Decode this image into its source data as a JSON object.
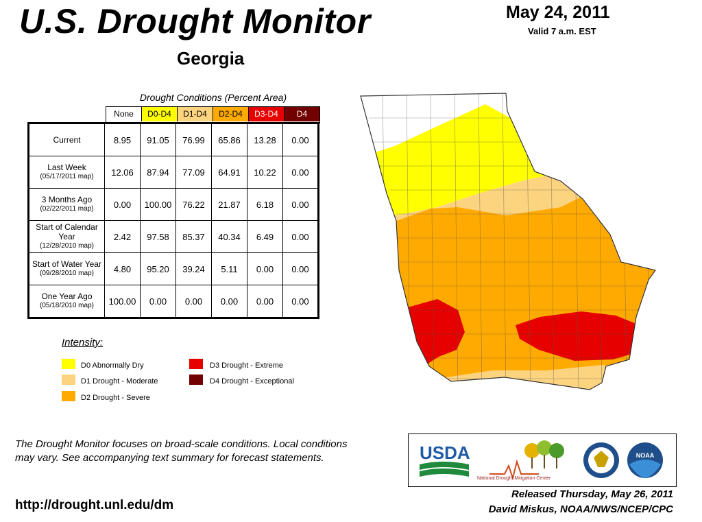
{
  "header": {
    "title": "U.S. Drought Monitor",
    "date": "May 24, 2011",
    "valid": "Valid 7 a.m. EST",
    "state": "Georgia"
  },
  "conditions": {
    "caption": "Drought Conditions (Percent Area)",
    "columns": [
      "None",
      "D0-D4",
      "D1-D4",
      "D2-D4",
      "D3-D4",
      "D4"
    ],
    "column_colors": [
      "#ffffff",
      "#ffff00",
      "#fcd37f",
      "#ffaa00",
      "#e60000",
      "#730000"
    ],
    "rows": [
      {
        "label": "Current",
        "sub": "",
        "values": [
          "8.95",
          "91.05",
          "76.99",
          "65.86",
          "13.28",
          "0.00"
        ]
      },
      {
        "label": "Last Week",
        "sub": "(05/17/2011 map)",
        "values": [
          "12.06",
          "87.94",
          "77.09",
          "64.91",
          "10.22",
          "0.00"
        ]
      },
      {
        "label": "3 Months Ago",
        "sub": "(02/22/2011 map)",
        "values": [
          "0.00",
          "100.00",
          "76.22",
          "21.87",
          "6.18",
          "0.00"
        ]
      },
      {
        "label": "Start of Calendar Year",
        "sub": "(12/28/2010 map)",
        "values": [
          "2.42",
          "97.58",
          "85.37",
          "40.34",
          "6.49",
          "0.00"
        ]
      },
      {
        "label": "Start of Water Year",
        "sub": "(09/28/2010 map)",
        "values": [
          "4.80",
          "95.20",
          "39.24",
          "5.11",
          "0.00",
          "0.00"
        ]
      },
      {
        "label": "One Year Ago",
        "sub": "(05/18/2010 map)",
        "values": [
          "100.00",
          "0.00",
          "0.00",
          "0.00",
          "0.00",
          "0.00"
        ]
      }
    ]
  },
  "legend": {
    "title": "Intensity:",
    "items": [
      {
        "label": "D0 Abnormally Dry",
        "color": "#ffff00"
      },
      {
        "label": "D1 Drought - Moderate",
        "color": "#fcd37f"
      },
      {
        "label": "D2 Drought - Severe",
        "color": "#ffaa00"
      },
      {
        "label": "D3 Drought - Extreme",
        "color": "#e60000"
      },
      {
        "label": "D4 Drought - Exceptional",
        "color": "#730000"
      }
    ]
  },
  "footer": {
    "note": "The Drought Monitor focuses on broad-scale conditions. Local conditions may vary. See accompanying text summary for forecast statements.",
    "url": "http://drought.unl.edu/dm",
    "released": "Released Thursday, May 26, 2011",
    "author": "David Miskus, NOAA/NWS/NCEP/CPC"
  },
  "logos": {
    "usda": "USDA",
    "ndmc": "National Drought Mitigation Center",
    "noaa": "NOAA"
  }
}
